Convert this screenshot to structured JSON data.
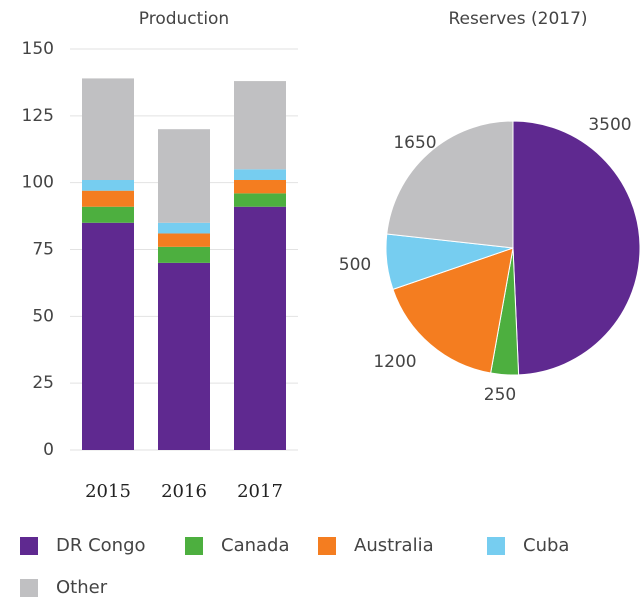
{
  "chart_data": [
    {
      "type": "bar",
      "title": "Production",
      "categories": [
        "2015",
        "2016",
        "2017"
      ],
      "series": [
        {
          "name": "DR Congo",
          "color": "#5f2990",
          "values": [
            85,
            70,
            91
          ]
        },
        {
          "name": "Canada",
          "color": "#4daf3f",
          "values": [
            6,
            6,
            5
          ]
        },
        {
          "name": "Australia",
          "color": "#f47d20",
          "values": [
            6,
            5,
            5
          ]
        },
        {
          "name": "Cuba",
          "color": "#76cdf0",
          "values": [
            4,
            4,
            4
          ]
        },
        {
          "name": "Other",
          "color": "#c0c0c2",
          "values": [
            38,
            35,
            33
          ]
        }
      ],
      "ylim": [
        0,
        150
      ],
      "yticks": [
        0,
        25,
        50,
        75,
        100,
        125,
        150
      ],
      "grid": true
    },
    {
      "type": "pie",
      "title": "Reserves (2017)",
      "values": [
        3500,
        250,
        1200,
        500,
        1650
      ],
      "colors": [
        "#5f2990",
        "#4daf3f",
        "#f47d20",
        "#76cdf0",
        "#c0c0c2"
      ]
    }
  ]
}
